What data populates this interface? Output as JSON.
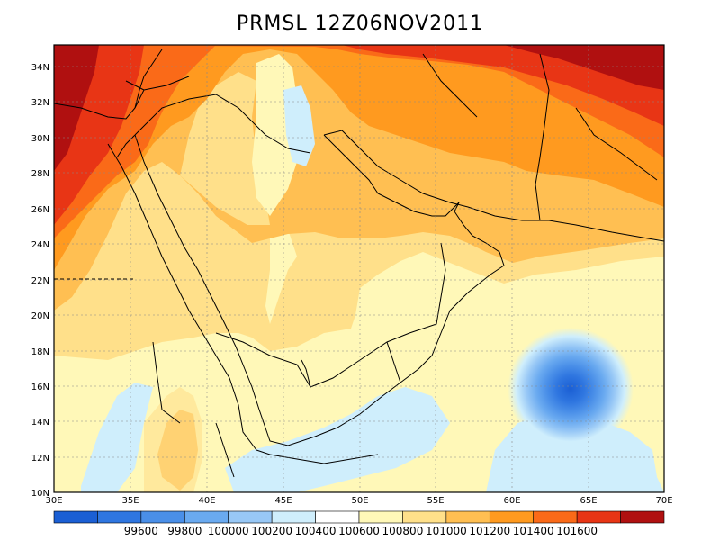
{
  "title": "PRMSL 12Z06NOV2011",
  "lon_ticks": [
    "30E",
    "35E",
    "40E",
    "45E",
    "50E",
    "55E",
    "60E",
    "65E",
    "70E"
  ],
  "lat_ticks": [
    "10N",
    "12N",
    "14N",
    "16N",
    "18N",
    "20N",
    "22N",
    "24N",
    "26N",
    "28N",
    "30N",
    "32N",
    "34N"
  ],
  "colorbar": {
    "labels": [
      "99600",
      "99800",
      "100000",
      "100200",
      "100400",
      "100600",
      "100800",
      "101000",
      "101200",
      "101400",
      "101600"
    ],
    "colors": [
      "#1b5fd4",
      "#2f76e0",
      "#4a8fe8",
      "#6aaaf0",
      "#98c8f6",
      "#cfeefc",
      "#ffffff",
      "#fff8b8",
      "#ffe08a",
      "#ffbf52",
      "#ff9a1f",
      "#fa6a18",
      "#e83515",
      "#b01010"
    ]
  },
  "map": {
    "domain": {
      "lon": [
        30,
        70
      ],
      "lat": [
        10,
        35
      ]
    },
    "field": "sea-level pressure (Pa)"
  }
}
